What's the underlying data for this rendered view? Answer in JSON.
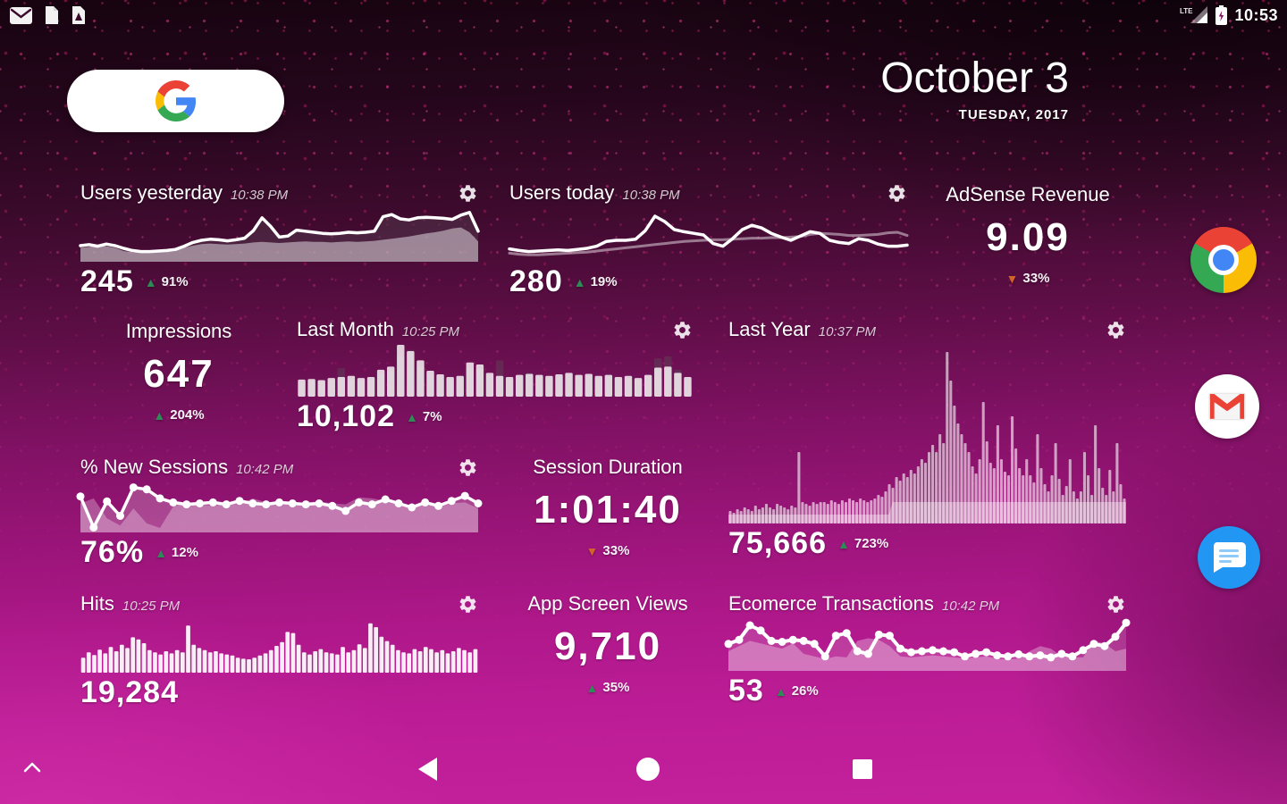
{
  "status_bar": {
    "time": "10:53",
    "network_type": "LTE",
    "notification_icons": [
      "gmail-icon",
      "document-icon",
      "drive-file-icon"
    ]
  },
  "search": {
    "logo_letter": "G"
  },
  "date_widget": {
    "title": "October 3",
    "subtitle": "TUESDAY, 2017"
  },
  "colors": {
    "up": "#2e8b57",
    "down": "#d4622a",
    "background_magenta": "#c5219d",
    "chart_white": "#ffffff"
  },
  "widgets": {
    "users_yesterday": {
      "title": "Users yesterday",
      "time": "10:38 PM",
      "value": "245",
      "delta": "91%",
      "direction": "up"
    },
    "users_today": {
      "title": "Users today",
      "time": "10:38 PM",
      "value": "280",
      "delta": "19%",
      "direction": "up"
    },
    "adsense_revenue": {
      "title": "AdSense Revenue",
      "value": "9.09",
      "delta": "33%",
      "direction": "down"
    },
    "impressions": {
      "title": "Impressions",
      "value": "647",
      "delta": "204%",
      "direction": "up"
    },
    "last_month": {
      "title": "Last Month",
      "time": "10:25 PM",
      "value": "10,102",
      "delta": "7%",
      "direction": "up"
    },
    "last_year": {
      "title": "Last Year",
      "time": "10:37 PM",
      "value": "75,666",
      "delta": "723%",
      "direction": "up"
    },
    "new_sessions": {
      "title": "% New Sessions",
      "time": "10:42 PM",
      "value": "76%",
      "delta": "12%",
      "direction": "up"
    },
    "session_duration": {
      "title": "Session Duration",
      "value": "1:01:40",
      "delta": "33%",
      "direction": "down"
    },
    "hits": {
      "title": "Hits",
      "time": "10:25 PM",
      "value": "19,284"
    },
    "app_screen_views": {
      "title": "App Screen Views",
      "value": "9,710",
      "delta": "35%",
      "direction": "up"
    },
    "ecommerce_transactions": {
      "title": "Ecomerce Transactions",
      "time": "10:42 PM",
      "value": "53",
      "delta": "26%",
      "direction": "up"
    }
  },
  "dock_icons": [
    "chrome-icon",
    "gmail-icon",
    "messages-icon"
  ],
  "nav_icons": [
    "back-icon",
    "home-icon",
    "recents-icon",
    "chevron-up-icon"
  ],
  "chart_data": {
    "users_yesterday": {
      "type": "area",
      "ylim": [
        0,
        100
      ],
      "series": [
        {
          "name": "today-fill",
          "kind": "area",
          "fill": "rgba(82,54,74,0.55)",
          "values": [
            30,
            32,
            29,
            33,
            30,
            25,
            21,
            19,
            19,
            20,
            21,
            23,
            29,
            36,
            40,
            42,
            41,
            39,
            41,
            44,
            58,
            82,
            66,
            46,
            48,
            59,
            57,
            55,
            53,
            52,
            53,
            55,
            54,
            55,
            57,
            84,
            88,
            80,
            78,
            82,
            83,
            82,
            81,
            79,
            87,
            92,
            57
          ]
        },
        {
          "name": "previous-day",
          "kind": "area",
          "fill": "rgba(255,255,255,0.45)",
          "values": [
            26,
            28,
            30,
            29,
            26,
            20,
            18,
            17,
            18,
            19,
            20,
            22,
            26,
            30,
            33,
            34,
            33,
            32,
            33,
            34,
            36,
            37,
            36,
            35,
            36,
            37,
            38,
            37,
            37,
            36,
            37,
            38,
            37,
            38,
            39,
            41,
            43,
            45,
            47,
            50,
            53,
            55,
            58,
            62,
            64,
            55,
            38
          ]
        },
        {
          "name": "today-line",
          "kind": "line",
          "stroke": "#ffffff",
          "width": 3.5,
          "values": [
            30,
            32,
            29,
            33,
            30,
            25,
            21,
            19,
            19,
            20,
            21,
            23,
            29,
            36,
            40,
            42,
            41,
            39,
            41,
            44,
            58,
            82,
            66,
            46,
            48,
            59,
            57,
            55,
            53,
            52,
            53,
            55,
            54,
            55,
            57,
            84,
            88,
            80,
            78,
            82,
            83,
            82,
            81,
            79,
            87,
            92,
            57
          ]
        }
      ]
    },
    "users_today": {
      "type": "line",
      "ylim": [
        0,
        100
      ],
      "series": [
        {
          "name": "previous-day",
          "kind": "line",
          "stroke": "rgba(255,255,255,0.45)",
          "width": 3,
          "values": [
            16,
            14,
            13,
            13,
            14,
            15,
            16,
            17,
            18,
            20,
            22,
            24,
            26,
            28,
            30,
            32,
            34,
            36,
            38,
            39,
            40,
            41,
            41,
            42,
            43,
            44,
            44,
            45,
            45,
            46,
            47,
            51,
            53,
            52,
            51,
            49,
            49,
            50,
            51,
            54,
            55,
            49
          ]
        },
        {
          "name": "today",
          "kind": "line",
          "stroke": "#ffffff",
          "width": 3.5,
          "values": [
            24,
            21,
            19,
            20,
            21,
            22,
            21,
            23,
            25,
            29,
            38,
            40,
            40,
            42,
            58,
            85,
            75,
            60,
            56,
            53,
            50,
            34,
            29,
            43,
            60,
            68,
            63,
            53,
            46,
            40,
            48,
            56,
            53,
            40,
            36,
            34,
            43,
            40,
            33,
            29,
            29,
            31
          ]
        }
      ]
    },
    "last_month": {
      "type": "bar",
      "ylim": [
        0,
        100
      ],
      "series": [
        {
          "name": "previous-period",
          "kind": "bars",
          "fill": "rgba(96,62,86,0.55)",
          "rx": 1.5,
          "values": [
            28,
            30,
            28,
            32,
            55,
            34,
            30,
            34,
            44,
            48,
            78,
            90,
            58,
            44,
            38,
            34,
            36,
            56,
            54,
            40,
            70,
            34,
            38,
            46,
            38,
            36,
            38,
            42,
            38,
            40,
            36,
            38,
            34,
            36,
            32,
            38,
            74,
            78,
            52,
            34
          ]
        },
        {
          "name": "current-period",
          "kind": "bars",
          "fill": "rgba(255,255,255,0.8)",
          "rx": 1.5,
          "values": [
            33,
            34,
            32,
            36,
            38,
            40,
            36,
            38,
            52,
            58,
            100,
            88,
            70,
            50,
            43,
            38,
            40,
            66,
            62,
            46,
            40,
            38,
            42,
            44,
            42,
            40,
            43,
            46,
            42,
            44,
            40,
            42,
            38,
            40,
            36,
            42,
            56,
            58,
            46,
            38
          ]
        }
      ]
    },
    "last_year": {
      "type": "bar",
      "ylim": [
        0,
        100
      ],
      "series": [
        {
          "name": "baseline-area",
          "kind": "area",
          "fill": "rgba(255,255,255,0.35)",
          "values": [
            5,
            5,
            5,
            5,
            5,
            5,
            5,
            5,
            5,
            5,
            5,
            5,
            5,
            5,
            5,
            5,
            5,
            5,
            5,
            5,
            5,
            5,
            5,
            5,
            5,
            5,
            5,
            5,
            5,
            5,
            5,
            5,
            5,
            5,
            5,
            5,
            5,
            5,
            5,
            5,
            5,
            5,
            5,
            5,
            5,
            12,
            12,
            12,
            12,
            12,
            12,
            12,
            12,
            12,
            12,
            12,
            12,
            12,
            12,
            12,
            12,
            12,
            12,
            12,
            12,
            12,
            12,
            12,
            12,
            12,
            12,
            12,
            12,
            12,
            12,
            12,
            12,
            12,
            12,
            12,
            12,
            12,
            12,
            12,
            12,
            12,
            12,
            12,
            12,
            12,
            12,
            12,
            12,
            12,
            12,
            12,
            12,
            12,
            12,
            12,
            12,
            12,
            12,
            12,
            12,
            12,
            12,
            12,
            12,
            12
          ]
        },
        {
          "name": "sessions",
          "kind": "bars",
          "fill": "rgba(255,255,255,0.6)",
          "rx": 1,
          "values": [
            7,
            6,
            8,
            7,
            9,
            8,
            7,
            10,
            8,
            9,
            11,
            9,
            8,
            11,
            10,
            9,
            8,
            10,
            9,
            40,
            12,
            11,
            10,
            12,
            11,
            12,
            12,
            11,
            13,
            12,
            11,
            13,
            12,
            14,
            13,
            12,
            14,
            13,
            12,
            13,
            14,
            16,
            15,
            18,
            22,
            20,
            26,
            24,
            28,
            26,
            30,
            28,
            32,
            36,
            34,
            40,
            44,
            40,
            50,
            45,
            96,
            80,
            66,
            56,
            50,
            45,
            40,
            32,
            28,
            36,
            68,
            46,
            34,
            31,
            55,
            36,
            29,
            27,
            60,
            42,
            31,
            27,
            36,
            27,
            23,
            50,
            31,
            22,
            18,
            27,
            45,
            25,
            16,
            21,
            36,
            18,
            14,
            18,
            40,
            27,
            16,
            55,
            31,
            20,
            16,
            30,
            18,
            45,
            22,
            14
          ]
        }
      ]
    },
    "new_sessions": {
      "type": "area",
      "ylim": [
        0,
        100
      ],
      "series": [
        {
          "name": "previous-fill",
          "kind": "area",
          "fill": "rgba(255,255,255,0.28)",
          "values": [
            58,
            68,
            28,
            14,
            48,
            18,
            9,
            52,
            62,
            56,
            53,
            58,
            56,
            68,
            60,
            56,
            58,
            60,
            62,
            58,
            56,
            70,
            68,
            63,
            58,
            53,
            56,
            50,
            58,
            60,
            48
          ]
        },
        {
          "name": "current-fill",
          "kind": "area",
          "fill": "rgba(255,255,255,0.22)",
          "values": [
            72,
            10,
            62,
            33,
            90,
            86,
            68,
            60,
            56,
            58,
            60,
            56,
            63,
            58,
            56,
            60,
            58,
            56,
            58,
            53,
            43,
            60,
            56,
            66,
            58,
            50,
            60,
            53,
            63,
            73,
            58
          ]
        },
        {
          "name": "current-line",
          "kind": "line",
          "stroke": "#ffffff",
          "width": 3.5,
          "markers": true,
          "marker_r": 4.5,
          "values": [
            72,
            10,
            62,
            33,
            90,
            86,
            68,
            60,
            56,
            58,
            60,
            56,
            63,
            58,
            56,
            60,
            58,
            56,
            58,
            53,
            43,
            60,
            56,
            66,
            58,
            50,
            60,
            53,
            63,
            73,
            58
          ]
        }
      ]
    },
    "hits": {
      "type": "bar",
      "ylim": [
        0,
        100
      ],
      "series": [
        {
          "name": "hits",
          "kind": "bars",
          "fill": "rgba(255,255,255,0.92)",
          "rx": 1,
          "values": [
            28,
            38,
            33,
            43,
            36,
            48,
            40,
            52,
            46,
            66,
            62,
            55,
            42,
            38,
            34,
            40,
            36,
            42,
            38,
            88,
            52,
            46,
            42,
            38,
            40,
            36,
            34,
            32,
            28,
            26,
            25,
            28,
            32,
            36,
            42,
            50,
            57,
            76,
            74,
            52,
            38,
            34,
            40,
            44,
            38,
            36,
            34,
            48,
            38,
            42,
            53,
            46,
            92,
            85,
            67,
            59,
            52,
            42,
            38,
            36,
            44,
            40,
            48,
            44,
            38,
            42,
            36,
            40,
            46,
            42,
            38,
            44
          ]
        }
      ]
    },
    "ecommerce_transactions": {
      "type": "area",
      "ylim": [
        0,
        100
      ],
      "series": [
        {
          "name": "previous-fill",
          "kind": "area",
          "fill": "rgba(255,255,255,0.3)",
          "values": [
            38,
            48,
            58,
            53,
            48,
            43,
            53,
            33,
            28,
            23,
            28,
            26,
            58,
            63,
            60,
            48,
            28,
            26,
            28,
            30,
            28,
            26,
            24,
            26,
            28,
            24,
            22,
            24,
            38,
            48,
            43,
            28,
            26,
            26,
            58,
            53,
            38,
            43
          ]
        },
        {
          "name": "current-fill",
          "kind": "area",
          "fill": "rgba(255,255,255,0.15)",
          "values": [
            52,
            60,
            88,
            78,
            58,
            56,
            60,
            58,
            52,
            28,
            68,
            73,
            38,
            33,
            70,
            68,
            43,
            36,
            38,
            40,
            38,
            36,
            28,
            33,
            36,
            30,
            28,
            32,
            28,
            30,
            26,
            33,
            28,
            40,
            52,
            48,
            66,
            93
          ]
        },
        {
          "name": "current-line",
          "kind": "line",
          "stroke": "#ffffff",
          "width": 4,
          "markers": true,
          "marker_r": 4.5,
          "values": [
            52,
            60,
            88,
            78,
            58,
            56,
            60,
            58,
            52,
            28,
            68,
            73,
            38,
            33,
            70,
            68,
            43,
            36,
            38,
            40,
            38,
            36,
            28,
            33,
            36,
            30,
            28,
            32,
            28,
            30,
            26,
            33,
            28,
            40,
            52,
            48,
            66,
            93
          ]
        }
      ]
    }
  }
}
